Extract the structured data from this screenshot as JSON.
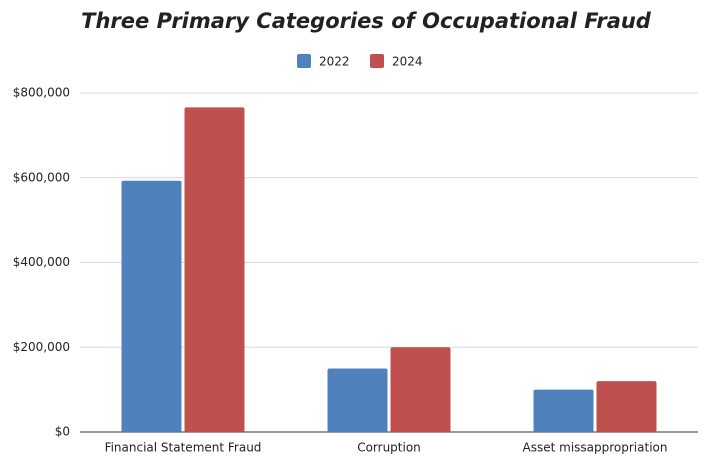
{
  "chart_data": {
    "type": "bar",
    "title": "Three Primary Categories of Occupational Fraud",
    "categories": [
      "Financial Statement Fraud",
      "Corruption",
      "Asset missappropriation"
    ],
    "series": [
      {
        "name": "2022",
        "color": "#4f81bd",
        "values": [
          593000,
          150000,
          100000
        ]
      },
      {
        "name": "2024",
        "color": "#c0504d",
        "values": [
          766000,
          200000,
          120000
        ]
      }
    ],
    "ylim": [
      0,
      800000
    ],
    "yticks": [
      {
        "value": 0,
        "label": "$0"
      },
      {
        "value": 200000,
        "label": "$200,000"
      },
      {
        "value": 400000,
        "label": "$400,000"
      },
      {
        "value": 600000,
        "label": "$600,000"
      },
      {
        "value": 800000,
        "label": "$800,000"
      }
    ],
    "grid": true,
    "legend": "top"
  }
}
